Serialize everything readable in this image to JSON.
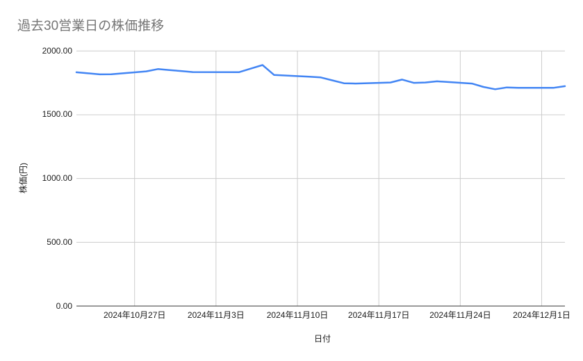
{
  "page": {
    "background": "#ffffff"
  },
  "style": {
    "title_color": "#757575",
    "tick_label_color": "#1a1a1a",
    "axis_title_color": "#1a1a1a",
    "grid_color": "#cccccc",
    "axis_line_color": "#333333",
    "line_color": "#4285f4"
  },
  "chart_data": {
    "type": "line",
    "title": "過去30営業日の株価推移",
    "xlabel": "日付",
    "ylabel": "株価(円)",
    "ylim": [
      0,
      2000
    ],
    "x_range_dates": [
      "2024-10-22",
      "2024-12-03"
    ],
    "grid": true,
    "legend_position": "none",
    "y_ticks": [
      {
        "value": 2000,
        "label": "2000.00"
      },
      {
        "value": 1500,
        "label": "1500.00"
      },
      {
        "value": 1000,
        "label": "1000.00"
      },
      {
        "value": 500,
        "label": "500.00"
      },
      {
        "value": 0,
        "label": "0.00"
      }
    ],
    "x_ticks": [
      {
        "date": "2024-10-27",
        "label": "2024年10月27日"
      },
      {
        "date": "2024-11-03",
        "label": "2024年11月3日"
      },
      {
        "date": "2024-11-10",
        "label": "2024年11月10日"
      },
      {
        "date": "2024-11-17",
        "label": "2024年11月17日"
      },
      {
        "date": "2024-11-24",
        "label": "2024年11月24日"
      },
      {
        "date": "2024-12-01",
        "label": "2024年12月1日"
      }
    ],
    "series": [
      {
        "name": "株価",
        "color": "#4285f4",
        "dates": [
          "2024-10-22",
          "2024-10-23",
          "2024-10-24",
          "2024-10-25",
          "2024-10-28",
          "2024-10-29",
          "2024-10-30",
          "2024-10-31",
          "2024-11-01",
          "2024-11-05",
          "2024-11-06",
          "2024-11-07",
          "2024-11-08",
          "2024-11-11",
          "2024-11-12",
          "2024-11-13",
          "2024-11-14",
          "2024-11-15",
          "2024-11-18",
          "2024-11-19",
          "2024-11-20",
          "2024-11-21",
          "2024-11-22",
          "2024-11-25",
          "2024-11-26",
          "2024-11-27",
          "2024-11-28",
          "2024-11-29",
          "2024-12-02",
          "2024-12-03"
        ],
        "values": [
          1833,
          1825,
          1817,
          1818,
          1840,
          1858,
          1850,
          1843,
          1835,
          1834,
          1862,
          1890,
          1812,
          1798,
          1793,
          1770,
          1747,
          1745,
          1753,
          1776,
          1750,
          1753,
          1762,
          1745,
          1718,
          1700,
          1714,
          1711,
          1711,
          1724
        ]
      }
    ]
  }
}
